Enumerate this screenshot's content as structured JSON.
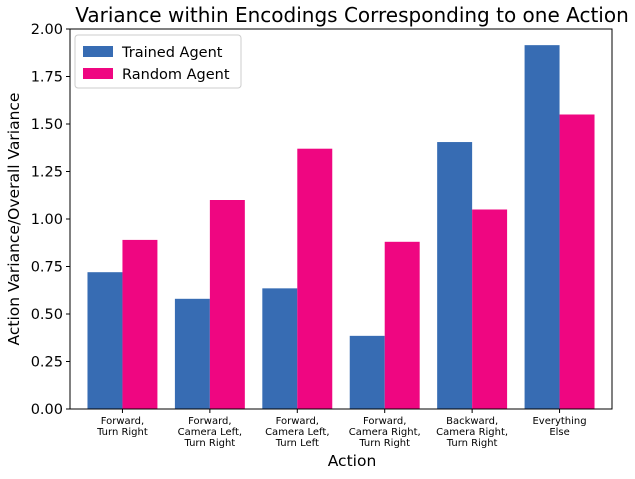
{
  "chart_data": {
    "type": "bar",
    "title": "Variance within Encodings Corresponding to one Action",
    "xlabel": "Action",
    "ylabel": "Action Variance/Overall Variance",
    "ylim": [
      0,
      2.0
    ],
    "yticks": [
      "0.00",
      "0.25",
      "0.50",
      "0.75",
      "1.00",
      "1.25",
      "1.50",
      "1.75",
      "2.00"
    ],
    "categories": [
      [
        "Forward,",
        "Turn Right"
      ],
      [
        "Forward,",
        "Camera Left,",
        "Turn Right"
      ],
      [
        "Forward,",
        "Camera Left,",
        "Turn Left"
      ],
      [
        "Forward,",
        "Camera Right,",
        "Turn Right"
      ],
      [
        "Backward,",
        "Camera Right,",
        "Turn Right"
      ],
      [
        "Everything",
        "Else"
      ]
    ],
    "series": [
      {
        "name": "Trained Agent",
        "color": "#376cb3",
        "values": [
          0.72,
          0.58,
          0.635,
          0.385,
          1.405,
          1.915
        ]
      },
      {
        "name": "Random Agent",
        "color": "#ef0681",
        "values": [
          0.89,
          1.1,
          1.37,
          0.88,
          1.05,
          1.55
        ]
      }
    ],
    "legend_position": "top-left",
    "grid": false
  }
}
